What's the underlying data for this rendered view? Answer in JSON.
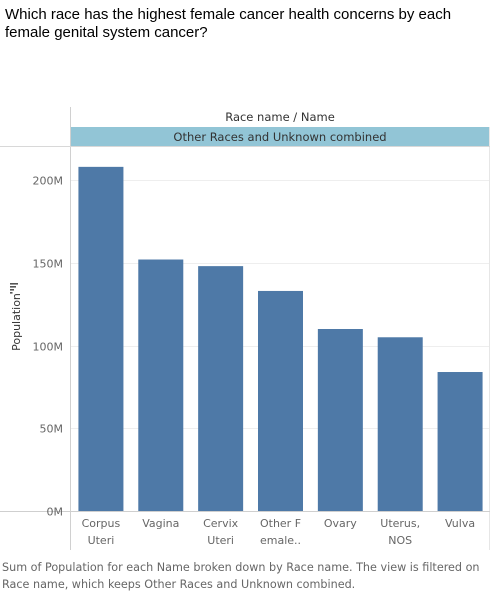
{
  "question": "Which race has the highest female cancer health concerns by each female genital system cancer?",
  "caption": "Sum of Population for each Name broken down by Race name. The view is filtered on Race name, which keeps Other Races and Unknown combined.",
  "colors": {
    "bar": "#4e79a7",
    "header_band": "#92c5d6",
    "axis_text": "#666666",
    "gridline": "#eeeeee"
  },
  "chart_data": {
    "type": "bar",
    "title": "",
    "column_header_title": "Race name  /  Name",
    "panel_label": "Other Races and Unknown combined",
    "ylabel": "Population",
    "ylim": [
      0,
      220000000
    ],
    "yticks": [
      0,
      50000000,
      100000000,
      150000000,
      200000000
    ],
    "ytick_labels": [
      "0M",
      "50M",
      "100M",
      "150M",
      "200M"
    ],
    "categories": [
      [
        "Corpus",
        "Uteri"
      ],
      [
        "Vagina"
      ],
      [
        "Cervix",
        "Uteri"
      ],
      [
        "Other F",
        "emale.."
      ],
      [
        "Ovary"
      ],
      [
        "Uterus,",
        "NOS"
      ],
      [
        "Vulva"
      ]
    ],
    "values": [
      208000000,
      152000000,
      148000000,
      133000000,
      110000000,
      105000000,
      84000000
    ]
  }
}
